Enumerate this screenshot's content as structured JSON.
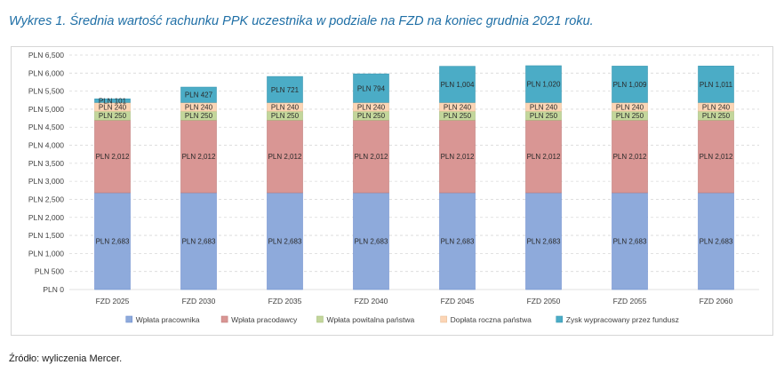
{
  "title": "Wykres 1. Średnia wartość rachunku PPK uczestnika w podziale na FZD na koniec grudnia 2021 roku.",
  "source": "Źródło: wyliczenia Mercer.",
  "colors": {
    "title": "#1f6fa6",
    "gridline": "#d9d9d9",
    "series": [
      "#8eaadb",
      "#d99694",
      "#c3d69b",
      "#fcd5b5",
      "#4bacc6"
    ],
    "series_border": [
      "#6f8fcf",
      "#c07a78",
      "#a8bf7f",
      "#e8bf98",
      "#3a98b2"
    ]
  },
  "chart_data": {
    "type": "bar",
    "stacked": true,
    "categories": [
      "FZD 2025",
      "FZD 2030",
      "FZD 2035",
      "FZD 2040",
      "FZD 2045",
      "FZD 2050",
      "FZD 2055",
      "FZD 2060"
    ],
    "series": [
      {
        "name": "Wpłata pracownika",
        "values": [
          2683,
          2683,
          2683,
          2683,
          2683,
          2683,
          2683,
          2683
        ],
        "labels": [
          "PLN 2,683",
          "PLN 2,683",
          "PLN 2,683",
          "PLN 2,683",
          "PLN 2,683",
          "PLN 2,683",
          "PLN 2,683",
          "PLN 2,683"
        ]
      },
      {
        "name": "Wpłata pracodawcy",
        "values": [
          2012,
          2012,
          2012,
          2012,
          2012,
          2012,
          2012,
          2012
        ],
        "labels": [
          "PLN 2,012",
          "PLN 2,012",
          "PLN 2,012",
          "PLN 2,012",
          "PLN 2,012",
          "PLN 2,012",
          "PLN 2,012",
          "PLN 2,012"
        ]
      },
      {
        "name": "Wpłata powitalna państwa",
        "values": [
          250,
          250,
          250,
          250,
          250,
          250,
          250,
          250
        ],
        "labels": [
          "PLN 250",
          "PLN 250",
          "PLN 250",
          "PLN 250",
          "PLN 250",
          "PLN 250",
          "PLN 250",
          "PLN 250"
        ]
      },
      {
        "name": "Dopłata roczna państwa",
        "values": [
          240,
          240,
          240,
          240,
          240,
          240,
          240,
          240
        ],
        "labels": [
          "PLN 240",
          "PLN 240",
          "PLN 240",
          "PLN 240",
          "PLN 240",
          "PLN 240",
          "PLN 240",
          "PLN 240"
        ]
      },
      {
        "name": "Zysk wypracowany przez fundusz",
        "values": [
          101,
          427,
          721,
          794,
          1004,
          1020,
          1009,
          1011
        ],
        "labels": [
          "PLN 101",
          "PLN 427",
          "PLN 721",
          "PLN 794",
          "PLN 1,004",
          "PLN 1,020",
          "PLN 1,009",
          "PLN 1,011"
        ]
      }
    ],
    "ylim": [
      0,
      6500
    ],
    "ytick_values": [
      0,
      500,
      1000,
      1500,
      2000,
      2500,
      3000,
      3500,
      4000,
      4500,
      5000,
      5500,
      6000,
      6500
    ],
    "ytick_labels": [
      "PLN 0",
      "PLN 500",
      "PLN 1,000",
      "PLN 1,500",
      "PLN 2,000",
      "PLN 2,500",
      "PLN 3,000",
      "PLN 3,500",
      "PLN 4,000",
      "PLN 4,500",
      "PLN 5,000",
      "PLN 5,500",
      "PLN 6,000",
      "PLN 6,500"
    ],
    "grid": true,
    "gridline_style": "dashed",
    "legend_position": "bottom"
  }
}
